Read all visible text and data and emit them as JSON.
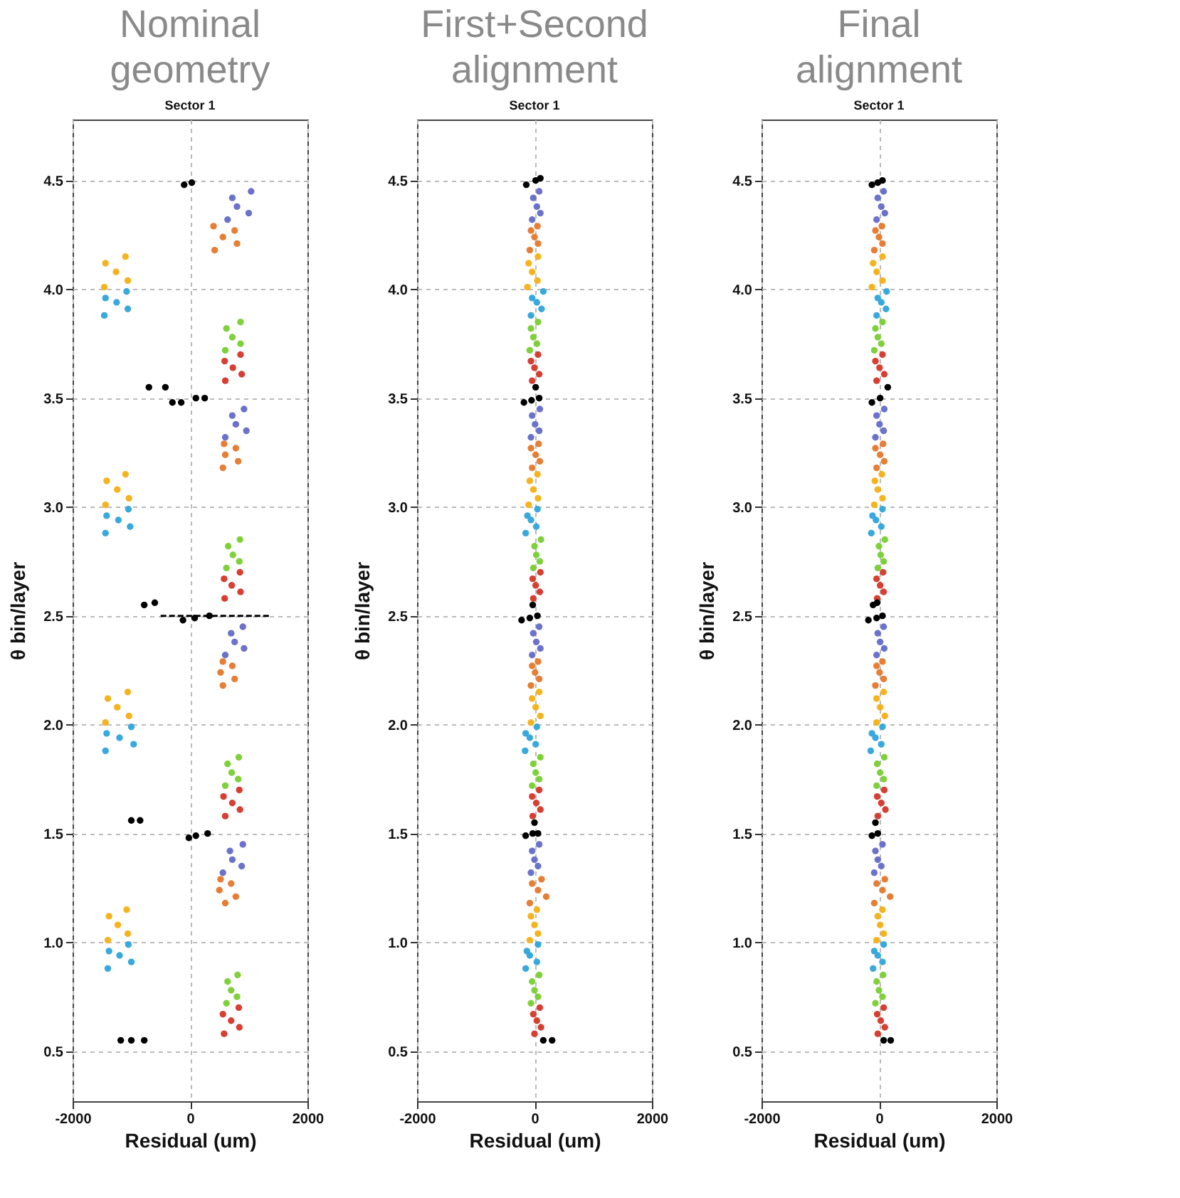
{
  "chart_data": [
    {
      "type": "scatter",
      "title": "Nominal geometry",
      "subtitle": "Sector 1",
      "xlabel": "Residual (um)",
      "ylabel": "θ bin/layer",
      "xlim": [
        -2000,
        2000
      ],
      "xticks": [
        -2000,
        0,
        2000
      ],
      "ylim": [
        0.27,
        4.78
      ],
      "yticks": [
        0.5,
        {
          "value": 1,
          "label": "1.0"
        },
        1.5,
        {
          "value": 2,
          "label": "2.0"
        },
        2.5,
        {
          "value": 3,
          "label": "3.0"
        },
        3.5,
        {
          "value": 4,
          "label": "4.0"
        },
        4.5
      ],
      "grid": true,
      "marker": "circle",
      "series": [
        {
          "color": "#d63f32",
          "x": [
            580,
            840,
            700,
            560,
            830,
            600,
            850,
            720,
            570,
            840,
            590,
            860,
            710,
            580,
            850,
            600,
            880,
            730,
            590,
            860
          ],
          "values": [
            0.58,
            0.61,
            0.64,
            0.67,
            0.7,
            1.58,
            1.61,
            1.64,
            1.67,
            1.7,
            2.58,
            2.61,
            2.64,
            2.67,
            2.7,
            3.58,
            3.61,
            3.64,
            3.67,
            3.7
          ]
        },
        {
          "color": "#7fd13b",
          "x": [
            620,
            800,
            700,
            640,
            810,
            600,
            820,
            710,
            640,
            830,
            620,
            840,
            730,
            650,
            850,
            600,
            860,
            720,
            620,
            860
          ],
          "values": [
            0.72,
            0.75,
            0.78,
            0.82,
            0.85,
            1.72,
            1.75,
            1.78,
            1.82,
            1.85,
            2.72,
            2.75,
            2.78,
            2.82,
            2.85,
            3.72,
            3.75,
            3.78,
            3.82,
            3.85
          ]
        },
        {
          "color": "#38a9dc",
          "x": [
            -1400,
            -1000,
            -1200,
            -1380,
            -1050,
            -1440,
            -960,
            -1200,
            -1420,
            -1000,
            -1440,
            -1020,
            -1220,
            -1420,
            -1050,
            -1460,
            -1060,
            -1250,
            -1440,
            -1080
          ],
          "values": [
            0.88,
            0.91,
            0.94,
            0.96,
            0.99,
            1.88,
            1.91,
            1.94,
            1.96,
            1.99,
            2.88,
            2.91,
            2.94,
            2.96,
            2.99,
            3.88,
            3.91,
            3.94,
            3.96,
            3.99
          ]
        },
        {
          "color": "#f5b41f",
          "x": [
            -1400,
            -1060,
            -1230,
            -1380,
            -1080,
            -1440,
            -1040,
            -1240,
            -1400,
            -1060,
            -1440,
            -1040,
            -1240,
            -1420,
            -1100,
            -1460,
            -1060,
            -1260,
            -1440,
            -1100
          ],
          "values": [
            1.01,
            1.04,
            1.08,
            1.12,
            1.15,
            2.01,
            2.04,
            2.08,
            2.12,
            2.15,
            3.01,
            3.04,
            3.08,
            3.12,
            3.15,
            4.01,
            4.04,
            4.08,
            4.12,
            4.15
          ]
        },
        {
          "color": "#e67e36",
          "x": [
            600,
            780,
            500,
            700,
            520,
            560,
            760,
            520,
            720,
            560,
            560,
            820,
            600,
            780,
            580,
            420,
            800,
            560,
            760,
            400
          ],
          "values": [
            1.18,
            1.21,
            1.24,
            1.27,
            1.29,
            2.18,
            2.21,
            2.24,
            2.27,
            2.29,
            3.18,
            3.21,
            3.24,
            3.27,
            3.29,
            4.18,
            4.21,
            4.24,
            4.27,
            4.29
          ]
        },
        {
          "color": "#6b72cc",
          "x": [
            560,
            880,
            720,
            680,
            900,
            600,
            920,
            760,
            700,
            900,
            600,
            960,
            780,
            720,
            920,
            640,
            1000,
            800,
            720,
            1040
          ],
          "values": [
            1.32,
            1.35,
            1.38,
            1.42,
            1.45,
            2.32,
            2.35,
            2.38,
            2.42,
            2.45,
            3.32,
            3.35,
            3.38,
            3.42,
            3.45,
            4.32,
            4.35,
            4.38,
            4.42,
            4.45
          ]
        },
        {
          "color": "#000000",
          "x": [
            -1180,
            -1000,
            -780,
            -20,
            100,
            300,
            -1000,
            -850,
            -120,
            80,
            330,
            -780,
            -600,
            -300,
            -150,
            100,
            250,
            -700,
            -420,
            -100,
            30
          ],
          "values": [
            0.55,
            0.55,
            0.55,
            1.48,
            1.49,
            1.5,
            1.56,
            1.56,
            2.48,
            2.49,
            2.5,
            2.55,
            2.56,
            3.48,
            3.48,
            3.5,
            3.5,
            3.55,
            3.55,
            4.48,
            4.49
          ],
          "xerrors": [
            null,
            null,
            null,
            null,
            null,
            null,
            null,
            null,
            null,
            null,
            [
              -500,
              1350
            ],
            null,
            null,
            null,
            null,
            null,
            null,
            null,
            null,
            null,
            null
          ]
        }
      ]
    },
    {
      "type": "scatter",
      "title": "First+Second alignment",
      "subtitle": "Sector 1",
      "xlabel": "Residual (um)",
      "ylabel": "θ bin/layer",
      "xlim": [
        -2000,
        2000
      ],
      "xticks": [
        -2000,
        0,
        2000
      ],
      "ylim": [
        0.27,
        4.78
      ],
      "yticks": [
        0.5,
        {
          "value": 1,
          "label": "1.0"
        },
        1.5,
        {
          "value": 2,
          "label": "2.0"
        },
        2.5,
        {
          "value": 3,
          "label": "3.0"
        },
        3.5,
        {
          "value": 4,
          "label": "4.0"
        },
        4.5
      ],
      "grid": true,
      "marker": "circle",
      "series": [
        {
          "color": "#d63f32",
          "x": [
            0,
            110,
            40,
            -20,
            90,
            -30,
            100,
            30,
            -40,
            80,
            -20,
            90,
            20,
            -30,
            100,
            -40,
            80,
            0,
            -60,
            60
          ],
          "values": [
            0.58,
            0.61,
            0.64,
            0.67,
            0.7,
            1.58,
            1.61,
            1.64,
            1.67,
            1.7,
            2.58,
            2.61,
            2.64,
            2.67,
            2.7,
            3.58,
            3.61,
            3.64,
            3.67,
            3.7
          ]
        },
        {
          "color": "#7fd13b",
          "x": [
            -60,
            60,
            0,
            -40,
            80,
            -40,
            80,
            20,
            -20,
            100,
            -20,
            90,
            30,
            0,
            110,
            -80,
            40,
            -20,
            -60,
            60
          ],
          "values": [
            0.72,
            0.75,
            0.78,
            0.82,
            0.85,
            1.72,
            1.75,
            1.78,
            1.82,
            1.85,
            2.72,
            2.75,
            2.78,
            2.82,
            2.85,
            3.72,
            3.75,
            3.78,
            3.82,
            3.85
          ]
        },
        {
          "color": "#38a9dc",
          "x": [
            -150,
            40,
            -80,
            -130,
            60,
            -160,
            20,
            -80,
            -150,
            40,
            -150,
            30,
            -60,
            -120,
            50,
            -60,
            120,
            40,
            -40,
            150
          ],
          "values": [
            0.88,
            0.91,
            0.94,
            0.96,
            0.99,
            1.88,
            1.91,
            1.94,
            1.96,
            1.99,
            2.88,
            2.91,
            2.94,
            2.96,
            2.99,
            3.88,
            3.91,
            3.94,
            3.96,
            3.99
          ]
        },
        {
          "color": "#f5b41f",
          "x": [
            -80,
            60,
            0,
            -60,
            40,
            -60,
            100,
            20,
            -40,
            80,
            -100,
            60,
            -20,
            -80,
            50,
            -120,
            50,
            -40,
            -100,
            60
          ],
          "values": [
            1.01,
            1.04,
            1.08,
            1.12,
            1.15,
            2.01,
            2.04,
            2.08,
            2.12,
            2.15,
            3.01,
            3.04,
            3.08,
            3.12,
            3.15,
            4.01,
            4.04,
            4.08,
            4.12,
            4.15
          ]
        },
        {
          "color": "#e67e36",
          "x": [
            -80,
            200,
            60,
            -40,
            120,
            -60,
            80,
            10,
            -40,
            60,
            -40,
            90,
            20,
            -60,
            70,
            -80,
            60,
            0,
            -60,
            50
          ],
          "values": [
            1.18,
            1.21,
            1.24,
            1.27,
            1.29,
            2.18,
            2.21,
            2.24,
            2.27,
            2.29,
            3.18,
            3.21,
            3.24,
            3.27,
            3.29,
            4.18,
            4.21,
            4.24,
            4.27,
            4.29
          ]
        },
        {
          "color": "#6b72cc",
          "x": [
            -60,
            60,
            0,
            -40,
            80,
            -40,
            100,
            30,
            -20,
            80,
            -60,
            80,
            10,
            -40,
            90,
            -40,
            100,
            40,
            -20,
            80
          ],
          "values": [
            1.32,
            1.35,
            1.38,
            1.42,
            1.45,
            2.32,
            2.35,
            2.38,
            2.42,
            2.45,
            3.32,
            3.35,
            3.38,
            3.42,
            3.45,
            4.32,
            4.35,
            4.38,
            4.42,
            4.45
          ]
        },
        {
          "color": "#000000",
          "x": [
            150,
            300,
            -150,
            -30,
            60,
            0,
            -220,
            -80,
            50,
            -30,
            -180,
            -50,
            80,
            20,
            -140,
            20,
            100
          ],
          "values": [
            0.55,
            0.55,
            1.49,
            1.5,
            1.5,
            1.55,
            2.48,
            2.49,
            2.5,
            2.55,
            3.48,
            3.49,
            3.5,
            3.55,
            4.48,
            4.5,
            4.51
          ]
        }
      ]
    },
    {
      "type": "scatter",
      "title": "Final alignment",
      "subtitle": "Sector 1",
      "xlabel": "Residual (um)",
      "ylabel": "θ bin/layer",
      "xlim": [
        -2000,
        2000
      ],
      "xticks": [
        -2000,
        0,
        2000
      ],
      "ylim": [
        0.27,
        4.78
      ],
      "yticks": [
        0.5,
        {
          "value": 1,
          "label": "1.0"
        },
        1.5,
        {
          "value": 2,
          "label": "2.0"
        },
        2.5,
        {
          "value": 3,
          "label": "3.0"
        },
        3.5,
        {
          "value": 4,
          "label": "4.0"
        },
        4.5
      ],
      "grid": true,
      "marker": "circle",
      "series": [
        {
          "color": "#d63f32",
          "x": [
            -20,
            100,
            30,
            -30,
            80,
            -20,
            110,
            40,
            -30,
            90,
            -30,
            80,
            20,
            -40,
            70,
            -40,
            90,
            10,
            -60,
            60
          ],
          "values": [
            0.58,
            0.61,
            0.64,
            0.67,
            0.7,
            1.58,
            1.61,
            1.64,
            1.67,
            1.7,
            2.58,
            2.61,
            2.64,
            2.67,
            2.7,
            3.58,
            3.61,
            3.64,
            3.67,
            3.7
          ]
        },
        {
          "color": "#7fd13b",
          "x": [
            -60,
            60,
            0,
            -40,
            70,
            -40,
            80,
            20,
            -30,
            90,
            -20,
            80,
            30,
            0,
            100,
            -80,
            40,
            -20,
            -60,
            60
          ],
          "values": [
            0.72,
            0.75,
            0.78,
            0.82,
            0.85,
            1.72,
            1.75,
            1.78,
            1.82,
            1.85,
            2.72,
            2.75,
            2.78,
            2.82,
            2.85,
            3.72,
            3.75,
            3.78,
            3.82,
            3.85
          ]
        },
        {
          "color": "#38a9dc",
          "x": [
            -100,
            60,
            -20,
            -80,
            80,
            -140,
            40,
            -60,
            -120,
            60,
            -130,
            40,
            -50,
            -110,
            60,
            -40,
            120,
            40,
            -20,
            130
          ],
          "values": [
            0.88,
            0.91,
            0.94,
            0.96,
            0.99,
            1.88,
            1.91,
            1.94,
            1.96,
            1.99,
            2.88,
            2.91,
            2.94,
            2.96,
            2.99,
            3.88,
            3.91,
            3.94,
            3.96,
            3.99
          ]
        },
        {
          "color": "#f5b41f",
          "x": [
            -40,
            80,
            20,
            -20,
            60,
            -40,
            100,
            20,
            -40,
            80,
            -80,
            60,
            -20,
            -70,
            50,
            -120,
            60,
            -40,
            -100,
            60
          ],
          "values": [
            1.01,
            1.04,
            1.08,
            1.12,
            1.15,
            2.01,
            2.04,
            2.08,
            2.12,
            2.15,
            3.01,
            3.04,
            3.08,
            3.12,
            3.15,
            4.01,
            4.04,
            4.08,
            4.12,
            4.15
          ]
        },
        {
          "color": "#e67e36",
          "x": [
            -80,
            190,
            60,
            -40,
            100,
            -60,
            80,
            10,
            -40,
            60,
            -40,
            90,
            20,
            -60,
            70,
            -80,
            60,
            0,
            -60,
            50
          ],
          "values": [
            1.18,
            1.21,
            1.24,
            1.27,
            1.29,
            2.18,
            2.21,
            2.24,
            2.27,
            2.29,
            3.18,
            3.21,
            3.24,
            3.27,
            3.29,
            4.18,
            4.21,
            4.24,
            4.27,
            4.29
          ]
        },
        {
          "color": "#6b72cc",
          "x": [
            -80,
            40,
            -20,
            -60,
            60,
            -40,
            90,
            20,
            -20,
            80,
            -60,
            80,
            10,
            -40,
            90,
            -40,
            100,
            40,
            -20,
            80
          ],
          "values": [
            1.32,
            1.35,
            1.38,
            1.42,
            1.45,
            2.32,
            2.35,
            2.38,
            2.42,
            2.45,
            3.32,
            3.35,
            3.38,
            3.42,
            3.45,
            4.32,
            4.35,
            4.38,
            4.42,
            4.45
          ]
        },
        {
          "color": "#000000",
          "x": [
            80,
            200,
            -120,
            -20,
            -60,
            -180,
            -40,
            60,
            -100,
            -30,
            -120,
            20,
            150,
            -120,
            -20,
            60
          ],
          "values": [
            0.55,
            0.55,
            1.49,
            1.5,
            1.55,
            2.48,
            2.49,
            2.5,
            2.55,
            2.56,
            3.48,
            3.5,
            3.55,
            4.48,
            4.49,
            4.5
          ]
        }
      ]
    }
  ]
}
